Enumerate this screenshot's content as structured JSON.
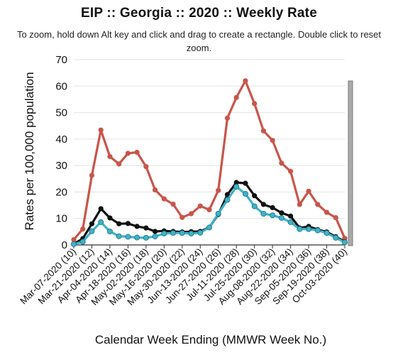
{
  "chart_data": {
    "type": "line",
    "title": "EIP :: Georgia :: 2020 :: Weekly Rate",
    "subtitle": "To zoom, hold down Alt key and click and drag to create a rectangle. Double click to reset zoom.",
    "xlabel": "Calendar Week Ending (MMWR Week No.)",
    "ylabel": "Rates per 100,000 population",
    "ylim": [
      0,
      70
    ],
    "yticks": [
      0,
      10,
      20,
      30,
      40,
      50,
      60,
      70
    ],
    "grid": "horizontal",
    "legend": "none",
    "x": [
      "Mar-07-2020 (10)",
      "Mar-14-2020 (11)",
      "Mar-21-2020 (12)",
      "Mar-28-2020 (13)",
      "Apr-04-2020 (14)",
      "Apr-11-2020 (15)",
      "Apr-18-2020 (16)",
      "Apr-25-2020 (17)",
      "May-02-2020 (18)",
      "May-09-2020 (19)",
      "May-16-2020 (20)",
      "May-23-2020 (21)",
      "May-30-2020 (22)",
      "Jun-06-2020 (23)",
      "Jun-13-2020 (24)",
      "Jun-20-2020 (25)",
      "Jun-27-2020 (26)",
      "Jul-04-2020 (27)",
      "Jul-11-2020 (28)",
      "Jul-18-2020 (29)",
      "Jul-25-2020 (30)",
      "Aug-01-2020 (31)",
      "Aug-08-2020 (32)",
      "Aug-15-2020 (33)",
      "Aug-22-2020 (34)",
      "Aug-29-2020 (35)",
      "Sep-05-2020 (36)",
      "Sep-12-2020 (37)",
      "Sep-19-2020 (38)",
      "Sep-26-2020 (39)",
      "Oct-03-2020 (40)"
    ],
    "xtick_labels": [
      "Mar-07-2020 (10)",
      "Mar-21-2020 (12)",
      "Apr-04-2020 (14)",
      "Apr-18-2020 (16)",
      "May-02-2020 (18)",
      "May-16-2020 (20)",
      "May-30-2020 (22)",
      "Jun-13-2020 (24)",
      "Jun-27-2020 (26)",
      "Jul-11-2020 (28)",
      "Jul-25-2020 (30)",
      "Aug-08-2020 (32)",
      "Aug-22-2020 (34)",
      "Sep-05-2020 (36)",
      "Sep-19-2020 (38)",
      "Oct-03-2020 (40)"
    ],
    "series": [
      {
        "color": "#c8554b",
        "values": [
          2.0,
          6.0,
          26.3,
          43.4,
          33.4,
          30.6,
          34.6,
          35.0,
          29.6,
          20.8,
          17.4,
          15.4,
          10.4,
          11.8,
          14.7,
          13.3,
          20.6,
          47.9,
          55.7,
          62.0,
          53.4,
          43.1,
          39.5,
          30.9,
          27.8,
          15.3,
          20.3,
          15.3,
          12.3,
          10.3,
          2.5
        ]
      },
      {
        "color": "#111111",
        "values": [
          0.4,
          2.4,
          8.0,
          13.7,
          10.2,
          8.0,
          8.1,
          7.0,
          6.4,
          5.1,
          5.3,
          5.1,
          4.9,
          5.0,
          5.1,
          6.6,
          11.5,
          19.0,
          23.6,
          23.3,
          18.6,
          15.3,
          14.1,
          12.1,
          10.9,
          6.4,
          7.0,
          5.8,
          4.9,
          3.1,
          1.2
        ]
      },
      {
        "color": "#3fb3c8",
        "values": [
          0.3,
          1.2,
          5.2,
          8.6,
          5.1,
          3.3,
          3.1,
          2.8,
          2.7,
          3.2,
          4.3,
          4.5,
          4.5,
          4.3,
          4.6,
          6.6,
          11.8,
          17.0,
          22.0,
          19.3,
          14.6,
          11.8,
          11.2,
          10.2,
          8.6,
          6.0,
          6.0,
          5.5,
          4.5,
          2.7,
          1.0
        ]
      }
    ]
  }
}
